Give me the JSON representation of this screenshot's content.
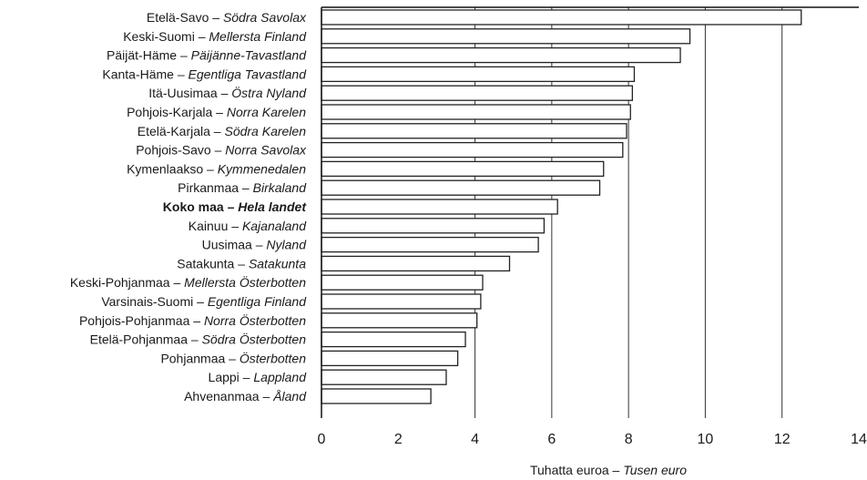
{
  "chart_data": {
    "type": "bar",
    "orientation": "horizontal",
    "categories": [
      {
        "fi": "Etelä-Savo",
        "sv": "Södra Savolax",
        "value": 12.5,
        "bold": false
      },
      {
        "fi": "Keski-Suomi",
        "sv": "Mellersta Finland",
        "value": 9.6,
        "bold": false
      },
      {
        "fi": "Päijät-Häme",
        "sv": "Päijänne-Tavastland",
        "value": 9.35,
        "bold": false
      },
      {
        "fi": "Kanta-Häme",
        "sv": "Egentliga Tavastland",
        "value": 8.15,
        "bold": false
      },
      {
        "fi": "Itä-Uusimaa",
        "sv": "Östra Nyland",
        "value": 8.1,
        "bold": false
      },
      {
        "fi": "Pohjois-Karjala",
        "sv": "Norra Karelen",
        "value": 8.05,
        "bold": false
      },
      {
        "fi": "Etelä-Karjala",
        "sv": "Södra Karelen",
        "value": 7.95,
        "bold": false
      },
      {
        "fi": "Pohjois-Savo",
        "sv": "Norra Savolax",
        "value": 7.85,
        "bold": false
      },
      {
        "fi": "Kymenlaakso",
        "sv": "Kymmenedalen",
        "value": 7.35,
        "bold": false
      },
      {
        "fi": "Pirkanmaa",
        "sv": "Birkaland",
        "value": 7.25,
        "bold": false
      },
      {
        "fi": "Koko maa",
        "sv": "Hela landet",
        "value": 6.15,
        "bold": true
      },
      {
        "fi": "Kainuu",
        "sv": "Kajanaland",
        "value": 5.8,
        "bold": false
      },
      {
        "fi": "Uusimaa",
        "sv": "Nyland",
        "value": 5.65,
        "bold": false
      },
      {
        "fi": "Satakunta",
        "sv": "Satakunta",
        "value": 4.9,
        "bold": false
      },
      {
        "fi": "Keski-Pohjanmaa",
        "sv": "Mellersta Österbotten",
        "value": 4.2,
        "bold": false
      },
      {
        "fi": "Varsinais-Suomi",
        "sv": "Egentliga Finland",
        "value": 4.15,
        "bold": false
      },
      {
        "fi": "Pohjois-Pohjanmaa",
        "sv": "Norra Österbotten",
        "value": 4.05,
        "bold": false
      },
      {
        "fi": "Etelä-Pohjanmaa",
        "sv": "Södra Österbotten",
        "value": 3.75,
        "bold": false
      },
      {
        "fi": "Pohjanmaa",
        "sv": "Österbotten",
        "value": 3.55,
        "bold": false
      },
      {
        "fi": "Lappi",
        "sv": "Lappland",
        "value": 3.25,
        "bold": false
      },
      {
        "fi": "Ahvenanmaa",
        "sv": "Åland",
        "value": 2.85,
        "bold": false
      }
    ],
    "separator": "–",
    "xlim": [
      0,
      14
    ],
    "xticks": [
      0,
      2,
      4,
      6,
      8,
      10,
      12,
      14
    ],
    "gridlines": [
      4,
      6,
      8,
      10,
      12
    ],
    "grid": true,
    "xlabel": {
      "fi": "Tuhatta euroa",
      "sv": "Tusen euro"
    },
    "title": "",
    "legend": "none"
  }
}
